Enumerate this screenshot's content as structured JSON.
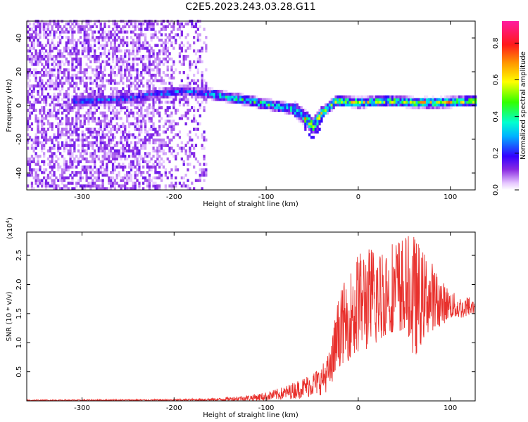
{
  "title": "C2E5.2023.243.03.28.G11",
  "chart_data": [
    {
      "type": "heatmap",
      "xlabel": "Height of straight line (km)",
      "ylabel": "Frequency (Hz)",
      "xlim": [
        -360,
        127
      ],
      "ylim": [
        -50,
        50
      ],
      "xticks": [
        -300,
        -200,
        -100,
        0,
        100
      ],
      "yticks": [
        -40,
        -20,
        0,
        20,
        40
      ],
      "colorbar": {
        "label": "Normalized spectral amplitude",
        "range": [
          0,
          0.92
        ],
        "ticks": [
          "0.0",
          "0.2",
          "0.4",
          "0.6",
          "0.8"
        ],
        "colormap": "white-purple-blue-cyan-green-yellow-orange-red-magenta"
      },
      "ridge": {
        "x": [
          -300,
          -260,
          -220,
          -190,
          -160,
          -130,
          -110,
          -90,
          -70,
          -55,
          -50,
          -40,
          -25,
          0,
          30,
          60,
          90,
          127
        ],
        "frequency_hz": [
          2,
          3,
          6,
          8,
          6,
          3,
          1,
          -1,
          -3,
          -10,
          -13,
          -5,
          2,
          1,
          2,
          1,
          1,
          2
        ]
      }
    },
    {
      "type": "line",
      "xlabel": "Height of straight line (km)",
      "ylabel": "SNR (10 * v/v)",
      "y_multiplier": "(x10^4)",
      "y_multiplier_base": "(x10",
      "y_multiplier_exp": "4",
      "y_multiplier_close": ")",
      "xlim": [
        -360,
        127
      ],
      "ylim": [
        0,
        2.9
      ],
      "xticks": [
        -300,
        -200,
        -100,
        0,
        100
      ],
      "yticks": [
        "0.5",
        "1.0",
        "1.5",
        "2.0",
        "2.5"
      ],
      "series": [
        {
          "color": "#e8302c",
          "envelope": {
            "x": [
              -360,
              -200,
              -150,
              -120,
              -100,
              -80,
              -60,
              -40,
              -30,
              -25,
              -20,
              -10,
              0,
              20,
              40,
              55,
              60,
              70,
              80,
              90,
              100,
              110,
              127
            ],
            "low": [
              0,
              0,
              0,
              0,
              0,
              0.02,
              0.05,
              0.1,
              0.2,
              0.4,
              0.6,
              0.7,
              0.8,
              1.0,
              1.2,
              1.1,
              0.7,
              1.0,
              1.2,
              1.3,
              1.4,
              1.4,
              1.5
            ],
            "high": [
              0.02,
              0.03,
              0.05,
              0.1,
              0.15,
              0.25,
              0.4,
              0.6,
              0.9,
              1.5,
              1.9,
              2.2,
              2.6,
              2.7,
              2.8,
              2.85,
              2.9,
              2.6,
              2.4,
              2.1,
              1.9,
              1.8,
              1.8
            ]
          }
        }
      ]
    }
  ]
}
